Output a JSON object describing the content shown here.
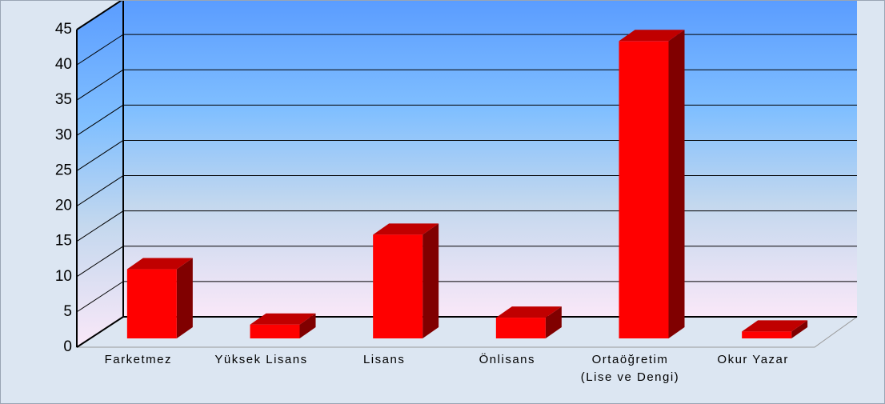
{
  "chart_data": {
    "type": "bar3d",
    "categories": [
      "Farketmez",
      "Yüksek Lisans",
      "Lisans",
      "Önlisans",
      "Ortaöğretim\n(Lise ve Dengi)",
      "Okur Yazar"
    ],
    "values": [
      10,
      2,
      15,
      3,
      43,
      1
    ],
    "color": "#ff0000",
    "ylim": [
      0,
      45
    ],
    "yticks": [
      0,
      5,
      10,
      15,
      20,
      25,
      30,
      35,
      40,
      45
    ],
    "grid": true
  }
}
